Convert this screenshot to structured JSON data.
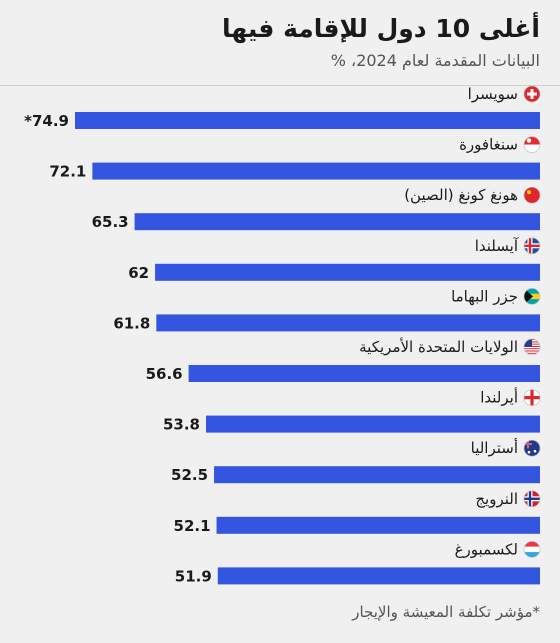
{
  "header": {
    "title": "أغلى 10 دول للإقامة فيها",
    "subtitle": "البيانات المقدمة لعام 2024، %"
  },
  "footnote": "*مؤشر تكلفة المعيشة والإيجار",
  "colors": {
    "bar": "#3355e0",
    "background": "#f0f0f0"
  },
  "chart_data": {
    "type": "bar",
    "orientation": "horizontal",
    "title": "أغلى 10 دول للإقامة فيها",
    "subtitle": "البيانات المقدمة لعام 2024، %",
    "categories": [
      "سويسرا",
      "سنغافورة",
      "هونغ كونغ (الصين)",
      "آيسلندا",
      "جزر البهاما",
      "الولايات المتحدة الأمريكية",
      "أيرلندا",
      "أستراليا",
      "النرويج",
      "لكسمبورغ"
    ],
    "values": [
      74.9,
      72.1,
      65.3,
      62,
      61.8,
      56.6,
      53.8,
      52.5,
      52.1,
      51.9
    ],
    "value_labels": [
      "*74.9",
      "72.1",
      "65.3",
      "62",
      "61.8",
      "56.6",
      "53.8",
      "52.5",
      "52.1",
      "51.9"
    ],
    "flag_icons": [
      "switzerland-flag-icon",
      "singapore-flag-icon",
      "china-flag-icon",
      "iceland-flag-icon",
      "bahamas-flag-icon",
      "usa-flag-icon",
      "ireland-flag-icon",
      "australia-flag-icon",
      "norway-flag-icon",
      "luxembourg-flag-icon"
    ],
    "xlim": [
      0,
      74.9
    ],
    "grid": false,
    "legend": "none"
  }
}
